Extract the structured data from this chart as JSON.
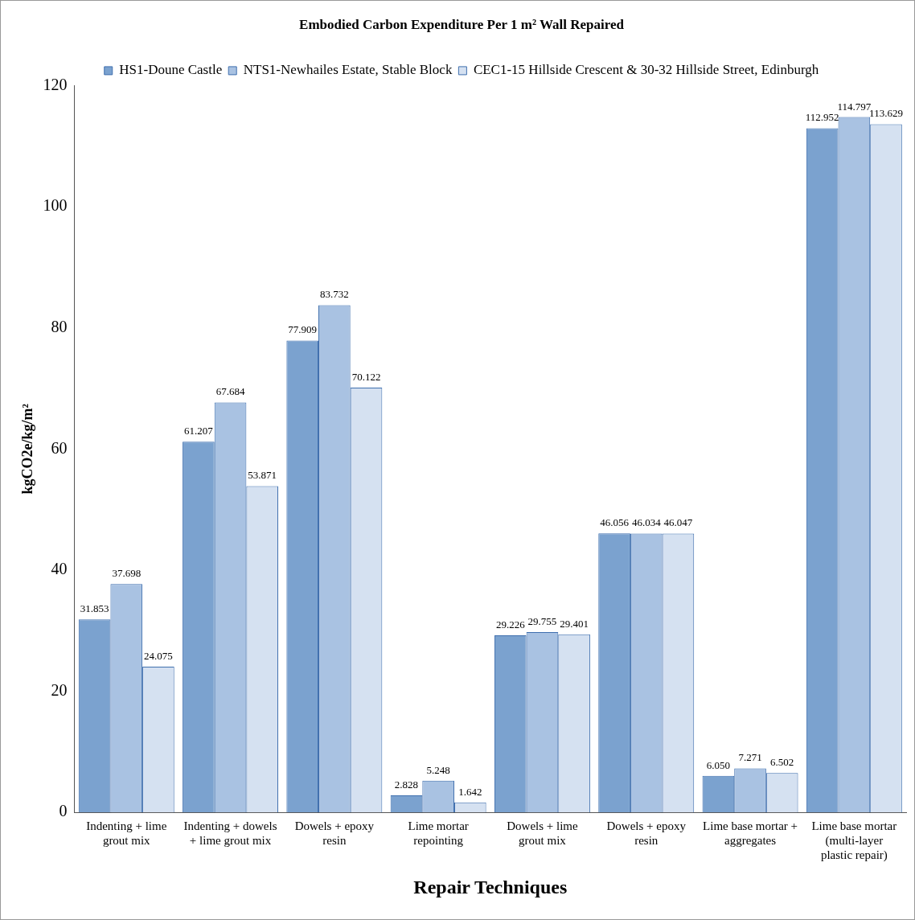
{
  "chart_data": {
    "type": "bar",
    "title": "Embodied Carbon Expenditure Per 1 m² Wall Repaired",
    "xlabel": "Repair Techniques",
    "ylabel": "kgCO2e/kg/m²",
    "categories": [
      "Indenting + lime grout mix",
      "Indenting + dowels + lime grout mix",
      "Dowels + epoxy resin",
      "Lime mortar repointing",
      "Dowels + lime grout mix",
      "Dowels + epoxy resin",
      "Lime base mortar + aggregates",
      "Lime base mortar (multi-layer plastic repair)"
    ],
    "series": [
      {
        "name": "HS1-Doune Castle",
        "color": "#7ba2cf",
        "values": [
          31.853,
          61.207,
          77.909,
          2.828,
          29.226,
          46.056,
          6.05,
          112.952
        ],
        "value_labels": [
          "31.853",
          "61.207",
          "77.909",
          "2.828",
          "29.226",
          "46.056",
          "6.050",
          "112.952"
        ]
      },
      {
        "name": "NTS1-Newhailes Estate, Stable Block",
        "color": "#a9c2e2",
        "values": [
          37.698,
          67.684,
          83.732,
          5.248,
          29.755,
          46.034,
          7.271,
          114.797
        ],
        "value_labels": [
          "37.698",
          "67.684",
          "83.732",
          "5.248",
          "29.755",
          "46.034",
          "7.271",
          "114.797"
        ]
      },
      {
        "name": "CEC1-15 Hillside Crescent & 30-32 Hillside Street, Edinburgh",
        "color": "#d5e1f1",
        "values": [
          24.075,
          53.871,
          70.122,
          1.642,
          29.401,
          46.047,
          6.502,
          113.629
        ],
        "value_labels": [
          "24.075",
          "53.871",
          "70.122",
          "1.642",
          "29.401",
          "46.047",
          "6.502",
          "113.629"
        ]
      }
    ],
    "ylim": [
      0,
      120
    ],
    "yticks": [
      0,
      20,
      40,
      60,
      80,
      100,
      120
    ],
    "grid": false,
    "legend": "top"
  }
}
